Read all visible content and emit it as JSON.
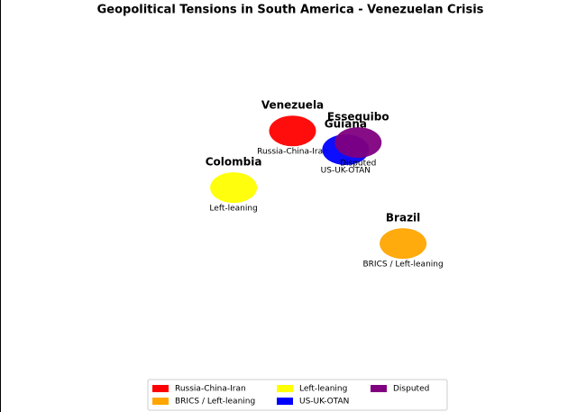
{
  "chart_data": {
    "type": "scatter",
    "title": "Geopolitical Tensions in South America - Venezuelan Crisis",
    "xlim": [
      -105.7,
      -27.4
    ],
    "ylim": [
      -52.2,
      51
    ],
    "points": [
      {
        "name": "Venezuela",
        "label": "Russia-China-Iran",
        "x": -66,
        "y": 18.2,
        "color": "#ff0000"
      },
      {
        "name": "Colombia",
        "label": "Left-leaning",
        "x": -74,
        "y": 4,
        "color": "#ffff00"
      },
      {
        "name": "Brazil",
        "label": "BRICS / Left-leaning",
        "x": -51,
        "y": -10,
        "color": "#ffa500"
      },
      {
        "name": "Guiana",
        "label": "US-UK-OTAN",
        "x": -58.8,
        "y": 13.5,
        "color": "#0000ff"
      },
      {
        "name": "Essequibo",
        "label": "Disputed",
        "x": -57.1,
        "y": 15.3,
        "color": "#800080"
      }
    ],
    "legend": [
      {
        "name": "Russia-China-Iran",
        "color": "#ff0000"
      },
      {
        "name": "BRICS / Left-leaning",
        "color": "#ffa500"
      },
      {
        "name": "Left-leaning",
        "color": "#ffff00"
      },
      {
        "name": "US-UK-OTAN",
        "color": "#0000ff"
      },
      {
        "name": "Disputed",
        "color": "#800080"
      }
    ]
  }
}
